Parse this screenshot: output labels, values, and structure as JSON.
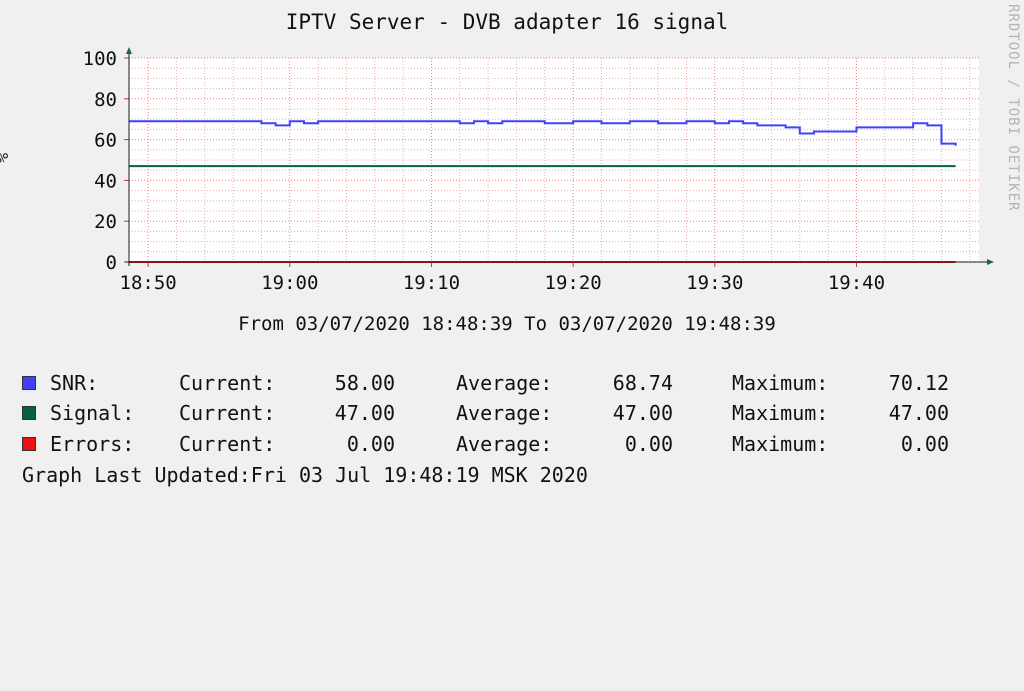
{
  "chart_data": {
    "type": "line",
    "title": "IPTV Server - DVB adapter 16 signal",
    "ylabel": "%",
    "ylim": [
      0,
      100
    ],
    "yticks": [
      0,
      20,
      40,
      60,
      80,
      100
    ],
    "xlim": [
      "18:48:39",
      "19:48:39"
    ],
    "xticks": [
      "18:50",
      "19:00",
      "19:10",
      "19:20",
      "19:30",
      "19:40"
    ],
    "grid": true,
    "watermark": "RRDTOOL / TOBI OETIKER",
    "time_range": "From 03/07/2020 18:48:39 To 03/07/2020 19:48:39",
    "series": [
      {
        "name": "SNR",
        "color": "#4040ff",
        "x": [
          "18:48:39",
          "18:57:00",
          "18:58:00",
          "18:59:00",
          "19:00:00",
          "19:01:00",
          "19:02:00",
          "19:10:00",
          "19:12:00",
          "19:13:00",
          "19:14:00",
          "19:15:00",
          "19:16:00",
          "19:18:00",
          "19:20:00",
          "19:22:00",
          "19:24:00",
          "19:26:00",
          "19:28:00",
          "19:30:00",
          "19:31:00",
          "19:32:00",
          "19:33:00",
          "19:34:00",
          "19:35:00",
          "19:36:00",
          "19:37:00",
          "19:39:00",
          "19:40:00",
          "19:44:00",
          "19:45:00",
          "19:46:00",
          "19:47:00"
        ],
        "values": [
          69,
          69,
          68,
          67,
          69,
          68,
          69,
          69,
          68,
          69,
          68,
          69,
          69,
          68,
          69,
          68,
          69,
          68,
          69,
          68,
          69,
          68,
          67,
          67,
          66,
          63,
          64,
          64,
          66,
          68,
          67,
          58,
          57
        ]
      },
      {
        "name": "Signal",
        "color": "#006540",
        "x": [
          "18:48:39",
          "19:47:00"
        ],
        "values": [
          47,
          47
        ]
      },
      {
        "name": "Errors",
        "color": "#ee1111",
        "x": [
          "18:48:39",
          "19:47:00"
        ],
        "values": [
          0,
          0
        ]
      }
    ]
  },
  "legend": {
    "current_label": "Current:",
    "average_label": "Average:",
    "maximum_label": "Maximum:",
    "rows": [
      {
        "label": "SNR:",
        "color": "#4040ff",
        "current": "58.00",
        "average": "68.74",
        "maximum": "70.12"
      },
      {
        "label": "Signal:",
        "color": "#006540",
        "current": "47.00",
        "average": "47.00",
        "maximum": "47.00"
      },
      {
        "label": "Errors:",
        "color": "#ee1111",
        "current": "0.00",
        "average": "0.00",
        "maximum": "0.00"
      }
    ]
  },
  "last_updated": "Graph Last Updated:Fri 03 Jul 19:48:19 MSK 2020"
}
